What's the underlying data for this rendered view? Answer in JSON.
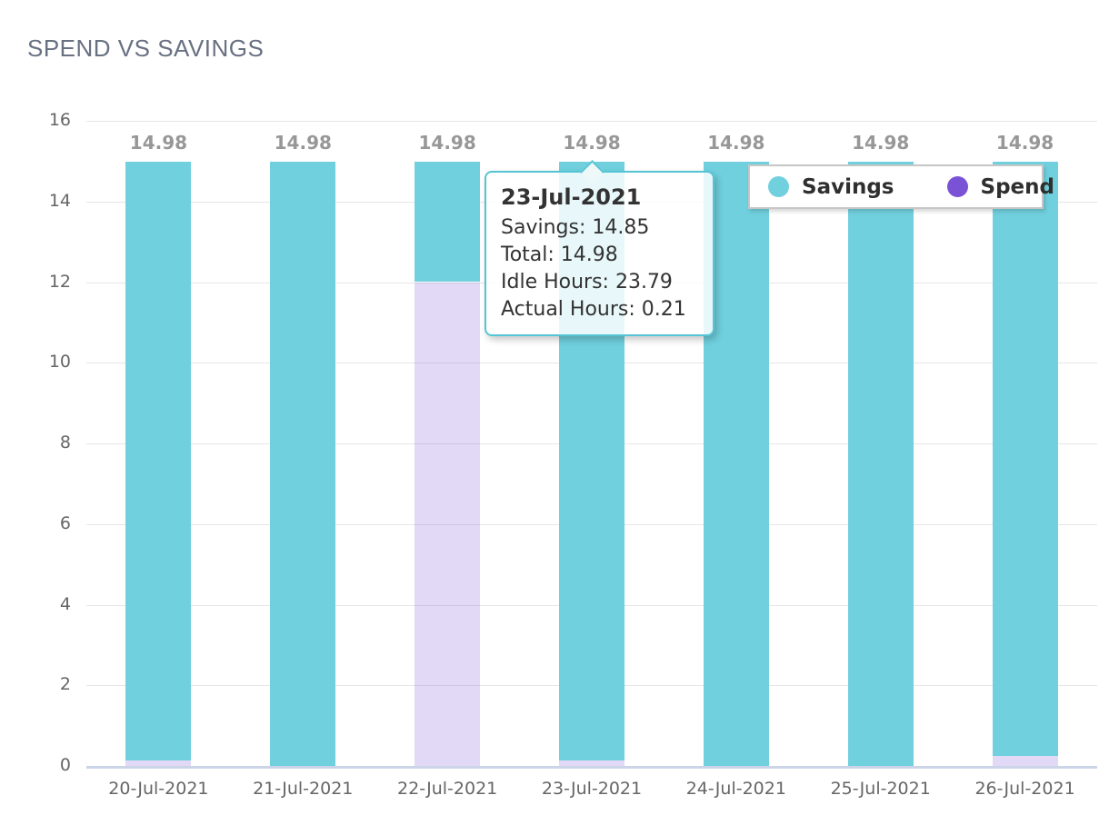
{
  "title": "SPEND VS SAVINGS",
  "chart_data": {
    "type": "bar",
    "stacked": true,
    "title": "SPEND VS SAVINGS",
    "categories": [
      "20-Jul-2021",
      "21-Jul-2021",
      "22-Jul-2021",
      "23-Jul-2021",
      "24-Jul-2021",
      "25-Jul-2021",
      "26-Jul-2021"
    ],
    "series": [
      {
        "name": "Spend",
        "color": "#7a52d6",
        "bar_fill": "rgba(122,82,214,0.22)",
        "values": [
          0.13,
          0,
          12,
          0.13,
          0,
          0,
          0.25
        ]
      },
      {
        "name": "Savings",
        "color": "#70d0de",
        "bar_fill": "#70d0de",
        "values": [
          14.85,
          14.98,
          2.98,
          14.85,
          14.98,
          14.98,
          14.73
        ]
      }
    ],
    "totals": [
      14.98,
      14.98,
      14.98,
      14.98,
      14.98,
      14.98,
      14.98
    ],
    "bar_labels": [
      "14.98",
      "14.98",
      "14.98",
      "14.98",
      "14.98",
      "14.98",
      "14.98"
    ],
    "xlabel": "",
    "ylabel": "",
    "ylim": [
      0,
      16
    ],
    "yticks": [
      0,
      2,
      4,
      6,
      8,
      10,
      12,
      14,
      16
    ],
    "grid": true,
    "legend_position": "top-right"
  },
  "legend": {
    "items": [
      {
        "label": "Savings",
        "color": "#70d0de"
      },
      {
        "label": "Spend",
        "color": "#7a52d6"
      }
    ]
  },
  "tooltip": {
    "target_category": "23-Jul-2021",
    "title": "23-Jul-2021",
    "lines": [
      "Savings: 14.85",
      "Total: 14.98",
      "Idle Hours: 23.79",
      "Actual Hours: 0.21"
    ]
  },
  "colors": {
    "savings": "#70d0de",
    "spend": "#7a52d6",
    "title_text": "#687082",
    "axis_text": "#666666",
    "bar_label_text": "#979797",
    "gridline": "#e6e6e6",
    "axis_line": "#ccd4e8",
    "tooltip_border": "#55c5d5"
  }
}
